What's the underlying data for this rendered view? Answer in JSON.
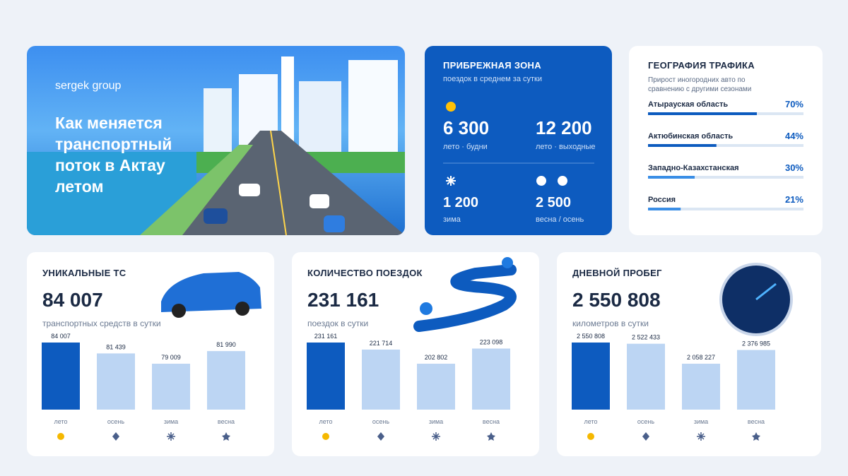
{
  "hero": {
    "brand": "sergek group",
    "title": "Как меняется транспортный поток в Актау летом"
  },
  "coastal": {
    "title": "ПРИБРЕЖНАЯ ЗОНА",
    "subtitle": "поездок в среднем за сутки",
    "stats": [
      {
        "value": "6 300",
        "label": "лето · будни"
      },
      {
        "value": "12 200",
        "label": "лето · выходные"
      },
      {
        "value": "1 200",
        "label": "зима"
      },
      {
        "value": "2 500",
        "label": "весна / осень"
      }
    ]
  },
  "geography": {
    "title": "ГЕОГРАФИЯ ТРАФИКА",
    "subtitle": "Прирост иногородних авто по сравнению с другими сезонами",
    "regions": [
      "Атырауская область",
      "Актюбинская область",
      "Западно-Казахстанская",
      "Россия"
    ],
    "values": [
      70,
      44,
      30,
      21
    ],
    "value_labels": [
      "70%",
      "44%",
      "30%",
      "21%"
    ]
  },
  "cards": [
    {
      "title": "УНИКАЛЬНЫЕ ТС",
      "total": "84 007",
      "subtitle": "транспортных средств в сутки",
      "categories": [
        "лето",
        "осень",
        "зима",
        "весна"
      ],
      "values": [
        84007,
        81439,
        79009,
        81990
      ],
      "value_labels": [
        "84 007",
        "81 439",
        "79 009",
        "81 990"
      ]
    },
    {
      "title": "КОЛИЧЕСТВО ПОЕЗДОК",
      "total": "231 161",
      "subtitle": "поездок в сутки",
      "categories": [
        "лето",
        "осень",
        "зима",
        "весна"
      ],
      "values": [
        231161,
        221714,
        202802,
        223098
      ],
      "value_labels": [
        "231 161",
        "221 714",
        "202 802",
        "223 098"
      ]
    },
    {
      "title": "ДНЕВНОЙ ПРОБЕГ",
      "total": "2 550 808",
      "subtitle": "километров в сутки",
      "categories": [
        "лето",
        "осень",
        "зима",
        "весна"
      ],
      "values": [
        2550808,
        2522433,
        2058227,
        2376985
      ],
      "value_labels": [
        "2 550 808",
        "2 522 433",
        "2 058 227",
        "2 376 985"
      ]
    }
  ]
}
